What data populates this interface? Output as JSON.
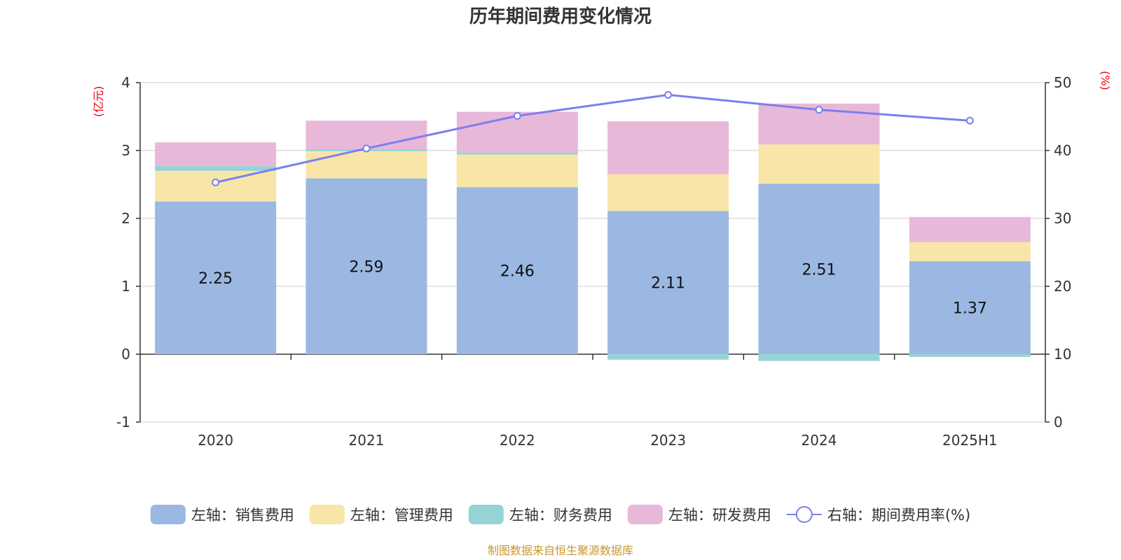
{
  "chart_data": {
    "type": "bar",
    "stacked": true,
    "title": "历年期间费用变化情况",
    "categories": [
      "2020",
      "2021",
      "2022",
      "2023",
      "2024",
      "2025H1"
    ],
    "left_axis": {
      "unit_label": "(亿元)",
      "ylim": [
        -1,
        4
      ],
      "ticks": [
        "-1",
        "0",
        "1",
        "2",
        "3",
        "4"
      ]
    },
    "right_axis": {
      "unit_label": "(%)",
      "ylim": [
        0,
        50
      ],
      "ticks": [
        "0",
        "10",
        "20",
        "30",
        "40",
        "50"
      ]
    },
    "series": [
      {
        "name": "左轴：销售费用",
        "axis": "left",
        "type": "bar",
        "color": "#9bb8e2",
        "values": [
          2.25,
          2.59,
          2.46,
          2.11,
          2.51,
          1.37
        ],
        "labels": [
          "2.25",
          "2.59",
          "2.46",
          "2.11",
          "2.51",
          "1.37"
        ]
      },
      {
        "name": "左轴：管理费用",
        "axis": "left",
        "type": "bar",
        "color": "#f8e6a8",
        "values": [
          0.45,
          0.4,
          0.48,
          0.54,
          0.58,
          0.28
        ]
      },
      {
        "name": "左轴：财务费用",
        "axis": "left",
        "type": "bar",
        "color": "#96d3d4",
        "values": [
          0.07,
          0.03,
          0.03,
          -0.08,
          -0.1,
          -0.04
        ]
      },
      {
        "name": "左轴：研发费用",
        "axis": "left",
        "type": "bar",
        "color": "#e8b8d9",
        "values": [
          0.35,
          0.42,
          0.6,
          0.78,
          0.6,
          0.37
        ]
      },
      {
        "name": "右轴：期间费用率(%)",
        "axis": "right",
        "type": "line",
        "color": "#7b7fee",
        "values": [
          35.3,
          40.3,
          45.1,
          48.2,
          46.0,
          44.4
        ]
      }
    ],
    "grid": true,
    "legend_position": "bottom"
  },
  "source_note": "制图数据来自恒生聚源数据库"
}
